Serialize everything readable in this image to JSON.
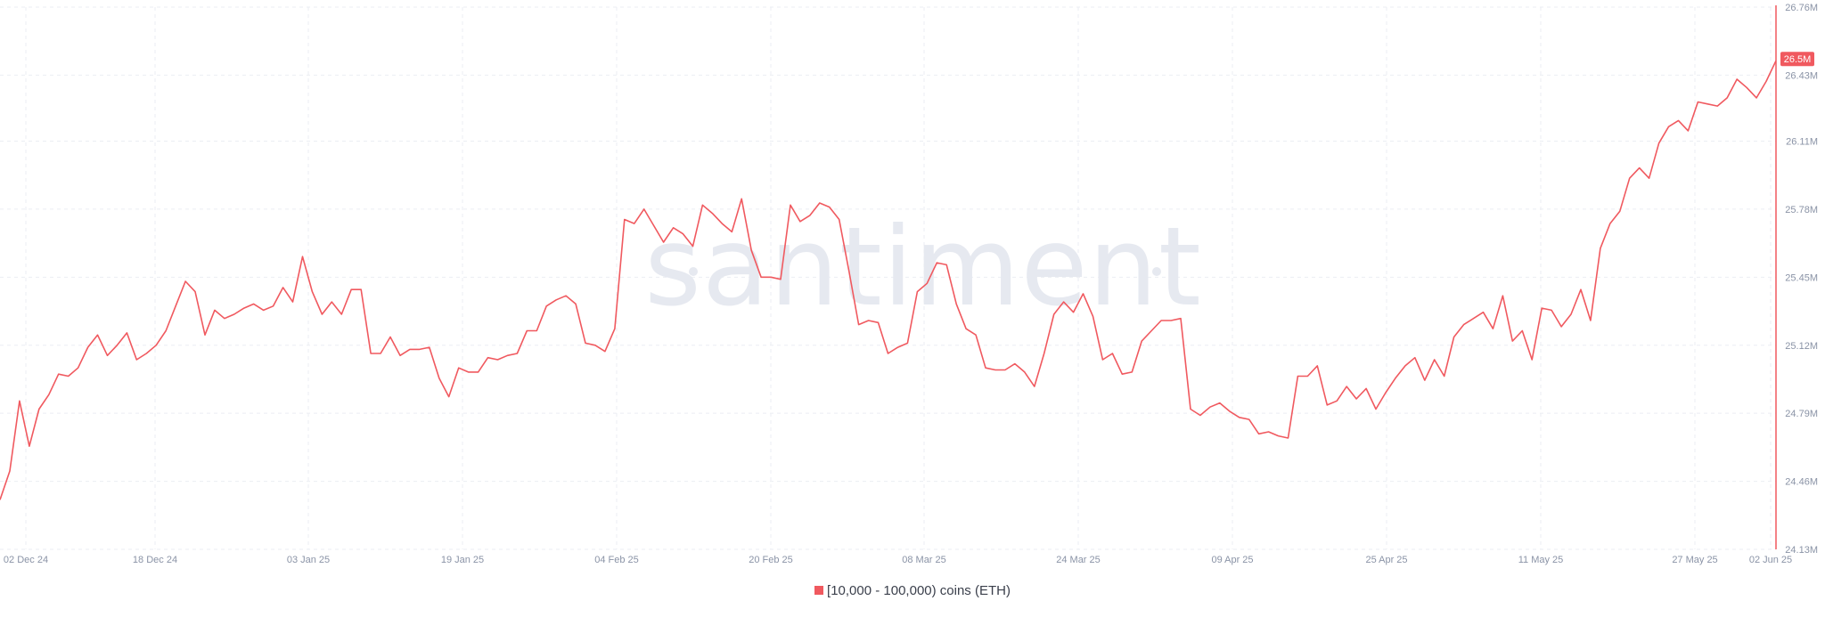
{
  "watermark": "santiment",
  "colors": {
    "series": "#f0595f",
    "grid": "#ebeef3",
    "text": "#8a93a6",
    "badge": "#f0595f"
  },
  "chart_data": {
    "type": "line",
    "y_ticks": [
      {
        "value": 24.13,
        "label": "24.13M"
      },
      {
        "value": 24.46,
        "label": "24.46M"
      },
      {
        "value": 24.79,
        "label": "24.79M"
      },
      {
        "value": 25.12,
        "label": "25.12M"
      },
      {
        "value": 25.45,
        "label": "25.45M"
      },
      {
        "value": 25.78,
        "label": "25.78M"
      },
      {
        "value": 26.11,
        "label": "26.11M"
      },
      {
        "value": 26.43,
        "label": "26.43M"
      },
      {
        "value": 26.76,
        "label": "26.76M"
      }
    ],
    "ylim": [
      24.13,
      26.76
    ],
    "x_ticks": [
      "02 Dec 24",
      "18 Dec 24",
      "03 Jan 25",
      "19 Jan 25",
      "04 Feb 25",
      "20 Feb 25",
      "08 Mar 25",
      "24 Mar 25",
      "09 Apr 25",
      "25 Apr 25",
      "11 May 25",
      "27 May 25",
      "02 Jun 25"
    ],
    "grid": true,
    "legend": "bottom-center",
    "last_value_label": "26.5M",
    "series": [
      {
        "name": "[10,000 - 100,000) coins (ETH)",
        "color": "#f0595f",
        "values": [
          24.37,
          24.51,
          24.85,
          24.63,
          24.81,
          24.88,
          24.98,
          24.97,
          25.01,
          25.11,
          25.17,
          25.07,
          25.12,
          25.18,
          25.05,
          25.08,
          25.12,
          25.19,
          25.31,
          25.43,
          25.38,
          25.17,
          25.29,
          25.25,
          25.27,
          25.3,
          25.32,
          25.29,
          25.31,
          25.4,
          25.33,
          25.55,
          25.38,
          25.27,
          25.33,
          25.27,
          25.39,
          25.39,
          25.08,
          25.08,
          25.16,
          25.07,
          25.1,
          25.1,
          25.11,
          24.96,
          24.87,
          25.01,
          24.99,
          24.99,
          25.06,
          25.05,
          25.07,
          25.08,
          25.19,
          25.19,
          25.31,
          25.34,
          25.36,
          25.32,
          25.13,
          25.12,
          25.09,
          25.2,
          25.73,
          25.71,
          25.78,
          25.7,
          25.62,
          25.69,
          25.66,
          25.6,
          25.8,
          25.76,
          25.71,
          25.67,
          25.83,
          25.58,
          25.45,
          25.45,
          25.44,
          25.8,
          25.72,
          25.75,
          25.81,
          25.79,
          25.73,
          25.48,
          25.22,
          25.24,
          25.23,
          25.08,
          25.11,
          25.13,
          25.38,
          25.42,
          25.52,
          25.51,
          25.32,
          25.2,
          25.17,
          25.01,
          25.0,
          25.0,
          25.03,
          24.99,
          24.92,
          25.08,
          25.27,
          25.33,
          25.28,
          25.37,
          25.26,
          25.05,
          25.08,
          24.98,
          24.99,
          25.14,
          25.19,
          25.24,
          25.24,
          25.25,
          24.81,
          24.78,
          24.82,
          24.84,
          24.8,
          24.77,
          24.76,
          24.69,
          24.7,
          24.68,
          24.67,
          24.97,
          24.97,
          25.02,
          24.83,
          24.85,
          24.92,
          24.86,
          24.91,
          24.81,
          24.89,
          24.96,
          25.02,
          25.06,
          24.95,
          25.05,
          24.97,
          25.16,
          25.22,
          25.25,
          25.28,
          25.2,
          25.36,
          25.14,
          25.19,
          25.05,
          25.3,
          25.29,
          25.21,
          25.27,
          25.39,
          25.24,
          25.59,
          25.71,
          25.77,
          25.93,
          25.98,
          25.93,
          26.1,
          26.18,
          26.21,
          26.16,
          26.3,
          26.29,
          26.28,
          26.32,
          26.41,
          26.37,
          26.32,
          26.4,
          26.5
        ]
      }
    ]
  }
}
